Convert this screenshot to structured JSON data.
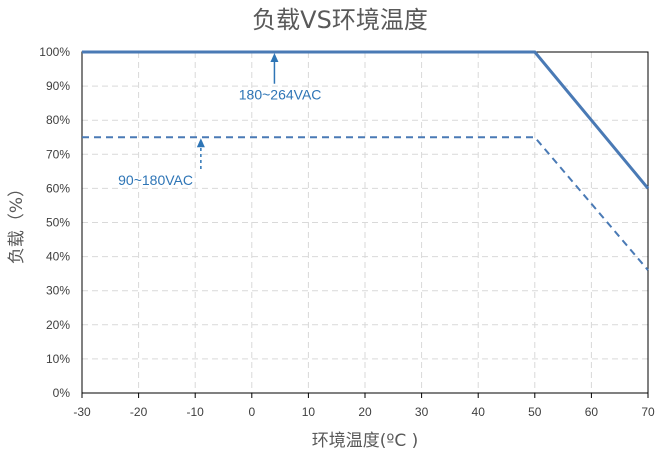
{
  "chart_data": {
    "type": "line",
    "title": "负载VS环境温度",
    "xlabel": "环境温度(ºC )",
    "ylabel": "负载（%）",
    "xlim": [
      -30,
      70
    ],
    "ylim": [
      0,
      100
    ],
    "x_ticks": [
      "-30",
      "-20",
      "-10",
      "0",
      "10",
      "20",
      "30",
      "40",
      "50",
      "60",
      "70"
    ],
    "y_ticks": [
      "0%",
      "10%",
      "20%",
      "30%",
      "40%",
      "50%",
      "60%",
      "70%",
      "80%",
      "90%",
      "100%"
    ],
    "grid": true,
    "series": [
      {
        "name": "180~264VAC",
        "style": "solid",
        "color": "#4a7ab5",
        "x": [
          -30,
          50,
          70
        ],
        "y": [
          100,
          100,
          60
        ]
      },
      {
        "name": "90~180VAC",
        "style": "dashed",
        "color": "#4a7ab5",
        "x": [
          -30,
          50,
          70
        ],
        "y": [
          75,
          75,
          36
        ]
      }
    ],
    "annotations": [
      {
        "text": "180~264VAC",
        "series": 0,
        "arrow_x": 4,
        "label_x": 5,
        "label_y": 86
      },
      {
        "text": "90~180VAC",
        "series": 1,
        "arrow_x": -9,
        "label_x": -17,
        "label_y": 61
      }
    ],
    "annotation_color": "#2e75b6"
  }
}
